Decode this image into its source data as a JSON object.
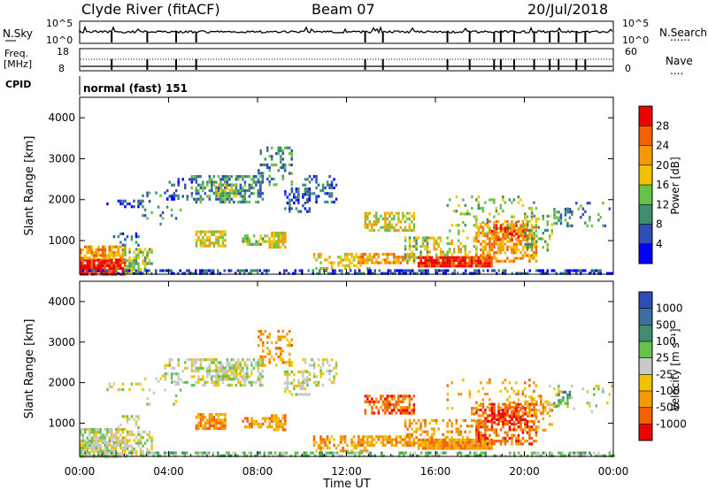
{
  "header": {
    "station": "Clyde River (fitACF)",
    "beam": "Beam 07",
    "date": "20/Jul/2018"
  },
  "summary": {
    "left_top_label": "N.Sky",
    "right_top_label": "N.Search",
    "left_mid_label_1": "Freq.",
    "left_mid_label_2": "[MHz]",
    "right_mid_label": "Nave",
    "cpid_label": "CPID",
    "cpid_value": "normal (fast) 151",
    "nsky_ticks": [
      "10^5",
      "10^0"
    ],
    "nsearch_ticks": [
      "10^5",
      "10^0"
    ],
    "freq_ticks": [
      "18",
      "8"
    ],
    "nave_ticks": [
      "60",
      "0"
    ],
    "dotted_legend": "......",
    "dotted_legend_2": "...."
  },
  "chart_data": [
    {
      "type": "heatmap",
      "name": "power",
      "ylabel": "Slant Range [km]",
      "xlabel": "Time UT",
      "y_range": [
        180,
        4500
      ],
      "y_ticks": [
        1000,
        2000,
        3000,
        4000
      ],
      "x_range_hours": [
        0,
        24
      ],
      "x_ticks": [
        "00:00",
        "04:00",
        "08:00",
        "12:00",
        "16:00",
        "20:00",
        "00:00"
      ],
      "colorbar_label": "Power [dB]",
      "colorbar_ticks": [
        "4",
        "8",
        "12",
        "16",
        "20",
        "24",
        "28"
      ],
      "colors": [
        "#0000ff",
        "#2d4fb4",
        "#3f8d6e",
        "#66c24a",
        "#f2c200",
        "#f39a00",
        "#f36100",
        "#ee0000"
      ]
    },
    {
      "type": "heatmap",
      "name": "velocity",
      "ylabel": "Slant Range [km]",
      "xlabel": "Time UT",
      "y_range": [
        180,
        4500
      ],
      "y_ticks": [
        1000,
        2000,
        3000,
        4000
      ],
      "x_range_hours": [
        0,
        24
      ],
      "x_ticks": [
        "00:00",
        "04:00",
        "08:00",
        "12:00",
        "16:00",
        "20:00",
        "00:00"
      ],
      "colorbar_label": "Velocity [m s⁻¹]",
      "colorbar_ticks": [
        "1000",
        "500",
        "100",
        "25",
        "-25",
        "-100",
        "-500",
        "-1000"
      ],
      "colors": [
        "#2d4fb4",
        "#3a6fa0",
        "#3f8d6e",
        "#66c24a",
        "#c8c8c8",
        "#f2c200",
        "#f39a00",
        "#f36100",
        "#ee0000"
      ]
    }
  ],
  "scatter_regions": [
    {
      "t0": 0.0,
      "t1": 2.0,
      "r0": 200,
      "r1": 560,
      "p": 0.9,
      "pw": 7,
      "vel": 4
    },
    {
      "t0": 0.0,
      "t1": 2.0,
      "r0": 560,
      "r1": 880,
      "p": 0.75,
      "pw": 5,
      "vel": 4
    },
    {
      "t0": 2.0,
      "t1": 3.2,
      "r0": 250,
      "r1": 820,
      "p": 0.55,
      "pw": 3,
      "vel": 4
    },
    {
      "t0": 1.5,
      "t1": 2.6,
      "r0": 900,
      "r1": 1200,
      "p": 0.3,
      "pw": 1,
      "vel": 4
    },
    {
      "t0": 1.2,
      "t1": 2.8,
      "r0": 1800,
      "r1": 2000,
      "p": 0.35,
      "pw": 1,
      "vel": 4
    },
    {
      "t0": 2.8,
      "t1": 4.5,
      "r0": 1400,
      "r1": 2200,
      "p": 0.12,
      "pw": 2,
      "vel": 4
    },
    {
      "t0": 3.8,
      "t1": 5.0,
      "r0": 2000,
      "r1": 2600,
      "p": 0.25,
      "pw": 1,
      "vel": 4
    },
    {
      "t0": 5.2,
      "t1": 6.5,
      "r0": 900,
      "r1": 1250,
      "p": 0.75,
      "pw": 4,
      "vel": 6
    },
    {
      "t0": 5.0,
      "t1": 8.2,
      "r0": 1950,
      "r1": 2600,
      "p": 0.55,
      "pw": 2,
      "vel": 4
    },
    {
      "t0": 6.0,
      "t1": 7.0,
      "r0": 2100,
      "r1": 2400,
      "p": 0.7,
      "pw": 3,
      "vel": 4
    },
    {
      "t0": 7.3,
      "t1": 8.5,
      "r0": 900,
      "r1": 1150,
      "p": 0.5,
      "pw": 3,
      "vel": 6
    },
    {
      "t0": 8.5,
      "t1": 9.2,
      "r0": 820,
      "r1": 1220,
      "p": 0.8,
      "pw": 4,
      "vel": 6
    },
    {
      "t0": 8.0,
      "t1": 9.5,
      "r0": 2400,
      "r1": 3300,
      "p": 0.3,
      "pw": 2,
      "vel": 6
    },
    {
      "t0": 9.2,
      "t1": 10.3,
      "r0": 1700,
      "r1": 2300,
      "p": 0.5,
      "pw": 1,
      "vel": 4
    },
    {
      "t0": 10.0,
      "t1": 11.5,
      "r0": 1950,
      "r1": 2600,
      "p": 0.35,
      "pw": 1,
      "vel": 4
    },
    {
      "t0": 10.5,
      "t1": 13.0,
      "r0": 330,
      "r1": 700,
      "p": 0.45,
      "pw": 4,
      "vel": 6
    },
    {
      "t0": 12.8,
      "t1": 15.0,
      "r0": 1250,
      "r1": 1700,
      "p": 0.55,
      "pw": 4,
      "vel": 7
    },
    {
      "t0": 12.5,
      "t1": 15.0,
      "r0": 450,
      "r1": 700,
      "p": 0.7,
      "pw": 5,
      "vel": 6
    },
    {
      "t0": 14.6,
      "t1": 15.6,
      "r0": 500,
      "r1": 1100,
      "p": 0.5,
      "pw": 3,
      "vel": 6
    },
    {
      "t0": 15.2,
      "t1": 18.5,
      "r0": 380,
      "r1": 620,
      "p": 0.95,
      "pw": 7,
      "vel": 6
    },
    {
      "t0": 15.6,
      "t1": 18.0,
      "r0": 650,
      "r1": 1100,
      "p": 0.3,
      "pw": 4,
      "vel": 6
    },
    {
      "t0": 17.8,
      "t1": 20.5,
      "r0": 500,
      "r1": 1500,
      "p": 0.55,
      "pw": 5,
      "vel": 7
    },
    {
      "t0": 18.5,
      "t1": 20.0,
      "r0": 1000,
      "r1": 1400,
      "p": 0.6,
      "pw": 6,
      "vel": 8
    },
    {
      "t0": 16.5,
      "t1": 20.5,
      "r0": 1200,
      "r1": 2100,
      "p": 0.15,
      "pw": 3,
      "vel": 6
    },
    {
      "t0": 20.0,
      "t1": 21.2,
      "r0": 800,
      "r1": 1700,
      "p": 0.3,
      "pw": 3,
      "vel": 6
    },
    {
      "t0": 21.3,
      "t1": 22.0,
      "r0": 1400,
      "r1": 1800,
      "p": 0.55,
      "pw": 2,
      "vel": 2
    },
    {
      "t0": 21.0,
      "t1": 23.9,
      "r0": 1300,
      "r1": 1950,
      "p": 0.08,
      "pw": 2,
      "vel": 4
    },
    {
      "t0": 0.0,
      "t1": 24.0,
      "r0": 180,
      "r1": 300,
      "p": 0.5,
      "pw": 1,
      "vel": 3
    }
  ]
}
